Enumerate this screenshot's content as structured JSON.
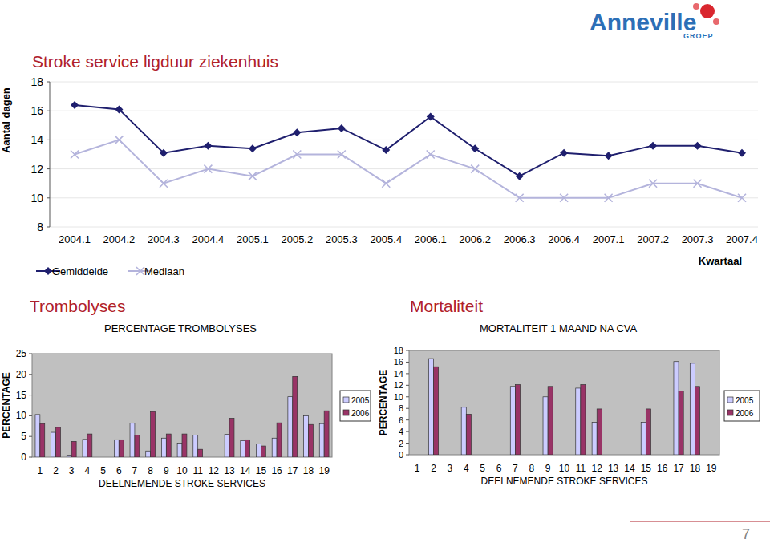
{
  "page": {
    "logo": "Anneville",
    "logo_sub": "GROEP",
    "page_number": 7
  },
  "chart_data": [
    {
      "type": "line",
      "title": "Stroke service ligduur ziekenhuis",
      "y_label": "Aantal dagen",
      "x_label": "Kwartaal",
      "categories": [
        "2004.1",
        "2004.2",
        "2004.3",
        "2004.4",
        "2005.1",
        "2005.2",
        "2005.3",
        "2005.4",
        "2006.1",
        "2006.2",
        "2006.3",
        "2006.4",
        "2007.1",
        "2007.2",
        "2007.3",
        "2007.4"
      ],
      "series": [
        {
          "name": "Gemiddelde",
          "color": "#1f1f6e",
          "marker": "diamond",
          "values": [
            16.4,
            16.1,
            13.1,
            13.6,
            13.4,
            14.5,
            14.8,
            13.3,
            15.6,
            13.4,
            11.5,
            13.1,
            12.9,
            13.6,
            13.6,
            13.1
          ]
        },
        {
          "name": "Mediaan",
          "color": "#b4b4dc",
          "marker": "x",
          "values": [
            13,
            14,
            11,
            12,
            11.5,
            13,
            13,
            11,
            13,
            12,
            10,
            10,
            10,
            11,
            11,
            10
          ]
        }
      ],
      "ylim": [
        8,
        18
      ],
      "yticks": [
        8,
        10,
        12,
        14,
        16,
        18
      ],
      "grid": true,
      "legend": "bottom"
    },
    {
      "type": "bar",
      "title": "Trombolyses",
      "subtitle": "PERCENTAGE TROMBOLYSES",
      "y_label": "PERCENTAGE",
      "x_label": "DEELNEMENDE STROKE SERVICES",
      "categories": [
        "1",
        "2",
        "3",
        "4",
        "5",
        "6",
        "7",
        "8",
        "9",
        "10",
        "11",
        "12",
        "13",
        "14",
        "15",
        "16",
        "17",
        "18",
        "19"
      ],
      "series": [
        {
          "name": "2005",
          "color": "#ccccff",
          "values": [
            10.3,
            6.0,
            0.5,
            4.3,
            null,
            4.2,
            8.2,
            1.5,
            4.6,
            3.4,
            5.3,
            null,
            5.5,
            4.0,
            3.2,
            4.6,
            14.6,
            10.0,
            8.1
          ]
        },
        {
          "name": "2006",
          "color": "#993366",
          "values": [
            8.1,
            7.2,
            3.8,
            5.6,
            null,
            4.2,
            5.3,
            11.0,
            5.6,
            5.6,
            1.9,
            null,
            9.4,
            4.2,
            2.7,
            8.3,
            19.5,
            7.9,
            11.2
          ]
        }
      ],
      "ylim": [
        0,
        25
      ],
      "yticks": [
        0,
        5,
        10,
        15,
        20,
        25
      ],
      "grid": false,
      "legend": "right"
    },
    {
      "type": "bar",
      "title": "Mortaliteit",
      "subtitle": "MORTALITEIT 1 MAAND NA CVA",
      "y_label": "PERCENTAGE",
      "x_label": "DEELNEMENDE STROKE SERVICES",
      "categories": [
        "1",
        "2",
        "3",
        "4",
        "5",
        "6",
        "7",
        "8",
        "9",
        "10",
        "11",
        "12",
        "13",
        "14",
        "15",
        "16",
        "17",
        "18",
        "19"
      ],
      "series": [
        {
          "name": "2005",
          "color": "#ccccff",
          "values": [
            null,
            16.6,
            null,
            8.2,
            null,
            null,
            11.8,
            null,
            10.0,
            null,
            11.5,
            5.6,
            null,
            null,
            5.6,
            null,
            16.1,
            15.8,
            null
          ]
        },
        {
          "name": "2006",
          "color": "#993366",
          "values": [
            null,
            15.2,
            null,
            7.0,
            null,
            null,
            12.1,
            null,
            11.8,
            null,
            12.1,
            7.9,
            null,
            null,
            7.9,
            null,
            11.0,
            11.8,
            null
          ]
        }
      ],
      "ylim": [
        0,
        18
      ],
      "yticks": [
        0,
        2,
        4,
        6,
        8,
        10,
        12,
        14,
        16,
        18
      ],
      "grid": false,
      "legend": "right"
    }
  ]
}
